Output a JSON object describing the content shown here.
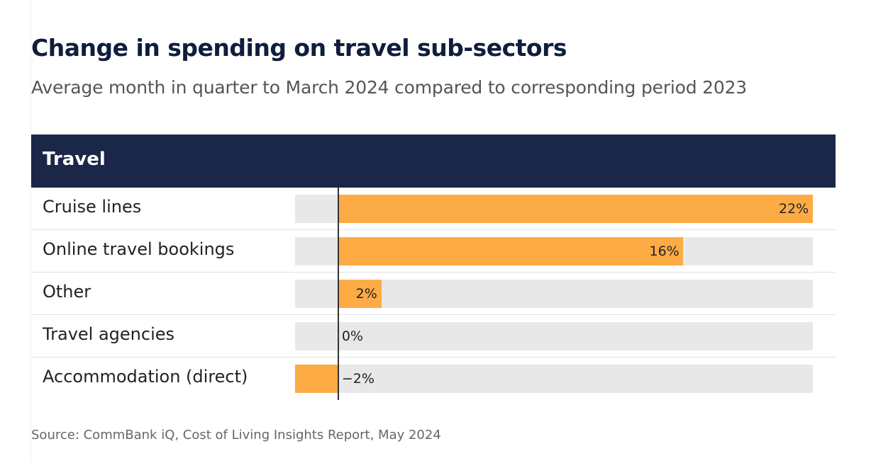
{
  "title": "Change in spending on travel sub-sectors",
  "subtitle": "Average month in quarter to March 2024 compared to corresponding period 2023",
  "source": "Source: CommBank iQ, Cost of Living Insights Report, May 2024",
  "colors": {
    "bar": "#fdab45",
    "header": "#1b2748",
    "track": "#e8e8e8"
  },
  "chart_data": {
    "type": "bar",
    "orientation": "horizontal",
    "group_header": "Travel",
    "categories": [
      "Cruise lines",
      "Online travel bookings",
      "Other",
      "Travel agencies",
      "Accommodation (direct)"
    ],
    "values": [
      22,
      16,
      2,
      0,
      -2
    ],
    "value_labels": [
      "22%",
      "16%",
      "2%",
      "0%",
      "−2%"
    ],
    "xlim": [
      -2,
      22
    ],
    "unit": "%"
  }
}
